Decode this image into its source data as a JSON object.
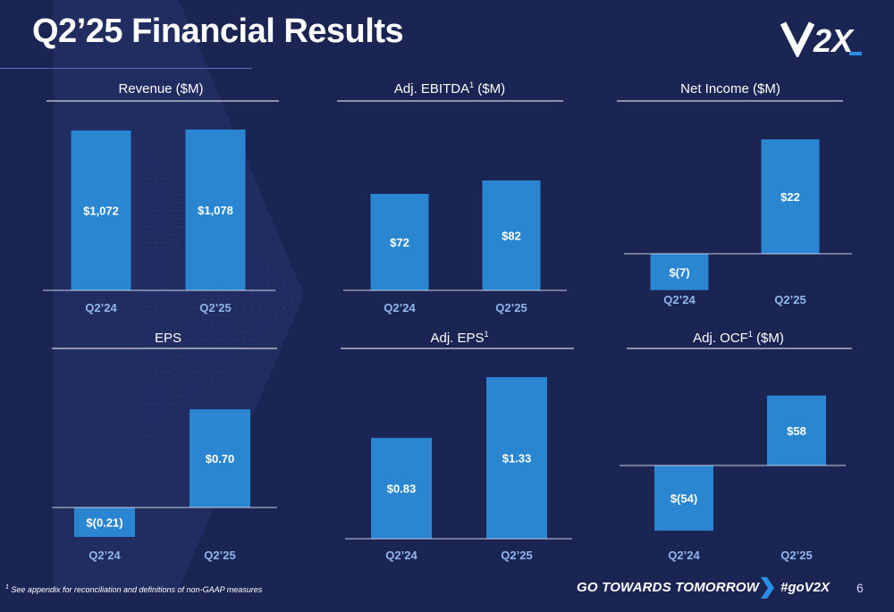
{
  "header": {
    "title": "Q2’25 Financial Results",
    "logo_text": "V2X"
  },
  "footer": {
    "footnote_marker": "1",
    "footnote_text": "See appendix for reconciliation and definitions of non-GAAP measures",
    "tagline": "GO TOWARDS TOMORROW",
    "hashtag": "#goV2X",
    "page_number": "6"
  },
  "colors": {
    "background": "#1b2553",
    "bar": "#2a86d1",
    "label_text": "#ffffff",
    "tick_text": "#8fb7ec",
    "accent": "#2a8ee6"
  },
  "chart_data": [
    {
      "type": "bar",
      "title": "Revenue ($M)",
      "categories": [
        "Q2’24",
        "Q2’25"
      ],
      "values": [
        1072,
        1078
      ],
      "labels": [
        "$1,072",
        "$1,078"
      ]
    },
    {
      "type": "bar",
      "title": "Adj. EBITDA",
      "title_sup": "1",
      "title_suffix": " ($M)",
      "categories": [
        "Q2’24",
        "Q2’25"
      ],
      "values": [
        72,
        82
      ],
      "labels": [
        "$72",
        "$82"
      ]
    },
    {
      "type": "bar",
      "title": "Net Income ($M)",
      "categories": [
        "Q2’24",
        "Q2’25"
      ],
      "values": [
        -7,
        22
      ],
      "labels": [
        "$(7)",
        "$22"
      ]
    },
    {
      "type": "bar",
      "title": "EPS",
      "categories": [
        "Q2’24",
        "Q2’25"
      ],
      "values": [
        -0.21,
        0.7
      ],
      "labels": [
        "$(0.21)",
        "$0.70"
      ]
    },
    {
      "type": "bar",
      "title": "Adj. EPS",
      "title_sup": "1",
      "title_suffix": "",
      "categories": [
        "Q2’24",
        "Q2’25"
      ],
      "values": [
        0.83,
        1.33
      ],
      "labels": [
        "$0.83",
        "$1.33"
      ]
    },
    {
      "type": "bar",
      "title": "Adj. OCF",
      "title_sup": "1",
      "title_suffix": " ($M)",
      "categories": [
        "Q2’24",
        "Q2’25"
      ],
      "values": [
        -54,
        58
      ],
      "labels": [
        "$(54)",
        "$58"
      ]
    }
  ]
}
